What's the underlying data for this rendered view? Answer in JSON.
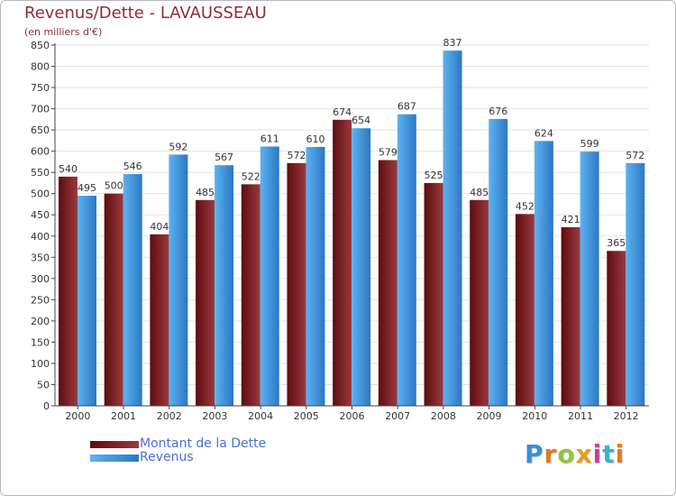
{
  "title": "Revenus/Dette - LAVAUSSEAU",
  "subtitle": "(en milliers d'€)",
  "logo_text": "Proxiti",
  "colors": {
    "dette_dark": "#5e0c10",
    "dette_light": "#9a3a3e",
    "revenus_dark": "#2a78c4",
    "revenus_light": "#5fb2f0",
    "title": "#8b2e3a",
    "legend_text": "#4a6fd8"
  },
  "chart_data": {
    "type": "bar",
    "categories": [
      "2000",
      "2001",
      "2002",
      "2003",
      "2004",
      "2005",
      "2006",
      "2007",
      "2008",
      "2009",
      "2010",
      "2011",
      "2012"
    ],
    "series": [
      {
        "name": "Montant de la Dette",
        "values": [
          540,
          500,
          404,
          485,
          522,
          572,
          674,
          579,
          525,
          485,
          452,
          421,
          365
        ]
      },
      {
        "name": "Revenus",
        "values": [
          495,
          546,
          592,
          567,
          611,
          610,
          654,
          687,
          837,
          676,
          624,
          599,
          572
        ]
      }
    ],
    "ylim": [
      0,
      850
    ],
    "yticks": [
      0,
      50,
      100,
      150,
      200,
      250,
      300,
      350,
      400,
      450,
      500,
      550,
      600,
      650,
      700,
      750,
      800,
      850
    ],
    "grid": true,
    "legend_position": "bottom-left"
  }
}
